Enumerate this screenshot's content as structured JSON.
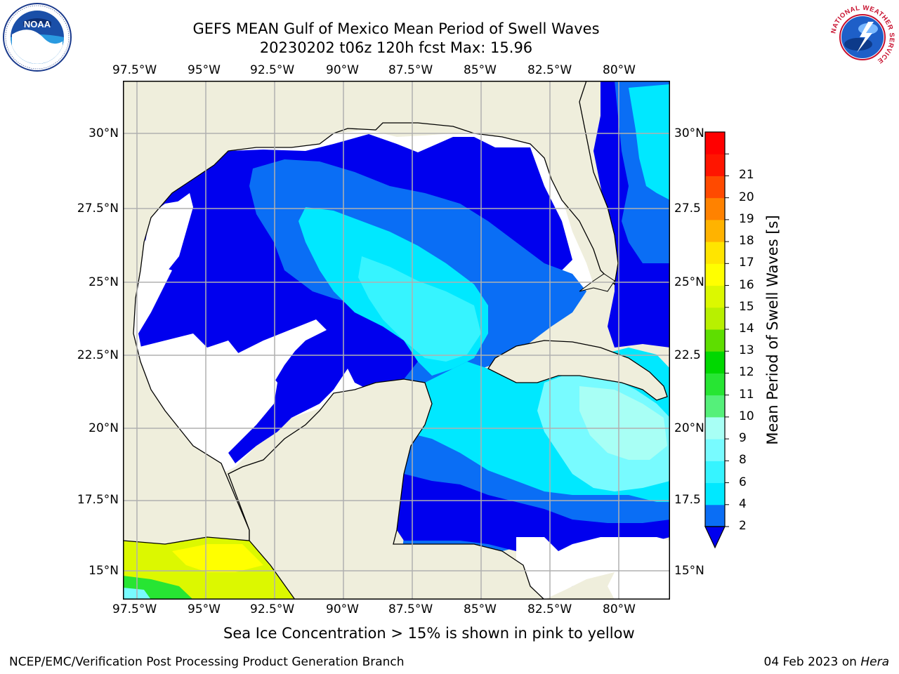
{
  "title": {
    "line1": "GEFS MEAN Gulf of Mexico Mean Period of Swell Waves",
    "line2": "20230202 t06z 120h fcst   Max: 15.96"
  },
  "map": {
    "lon_ticks": [
      "97.5°W",
      "95°W",
      "92.5°W",
      "90°W",
      "87.5°W",
      "85°W",
      "82.5°W",
      "80°W"
    ],
    "lat_ticks_left": [
      "30°N",
      "27.5°N",
      "25°N",
      "22.5°N",
      "20°N",
      "17.5°N",
      "15°N"
    ],
    "lat_ticks_right": [
      "30°N",
      "27.5",
      "25°N",
      "22.5",
      "20°N",
      "17.5",
      "15°N"
    ],
    "land_color": "#efeedc",
    "grid_color": "#b0b0b0"
  },
  "colorbar": {
    "label": "Mean Period of Swell Waves [s]",
    "ticks": [
      "2",
      "4",
      "6",
      "8",
      "9",
      "10",
      "11",
      "12",
      "13",
      "14",
      "15",
      "16",
      "17",
      "18",
      "19",
      "20",
      "21"
    ],
    "colors": [
      "#0a6ef5",
      "#00e8ff",
      "#36f4ff",
      "#78fbff",
      "#a8fff5",
      "#55f07a",
      "#27e533",
      "#00d800",
      "#5ede00",
      "#b8f000",
      "#dcf800",
      "#ffff00",
      "#ffe500",
      "#ffb300",
      "#ff8200",
      "#ff4a00",
      "#ff1500",
      "#ff0000"
    ],
    "under_color": "#0000ee"
  },
  "note": "Sea Ice Concentration > 15% is shown in pink to yellow",
  "footer": {
    "left": "NCEP/EMC/Verification Post Processing Product Generation Branch",
    "right_date": "04 Feb 2023 on ",
    "right_machine": "Hera"
  },
  "logos": {
    "noaa": "NOAA",
    "nws_ring": "NATIONAL WEATHER SERVICE"
  }
}
